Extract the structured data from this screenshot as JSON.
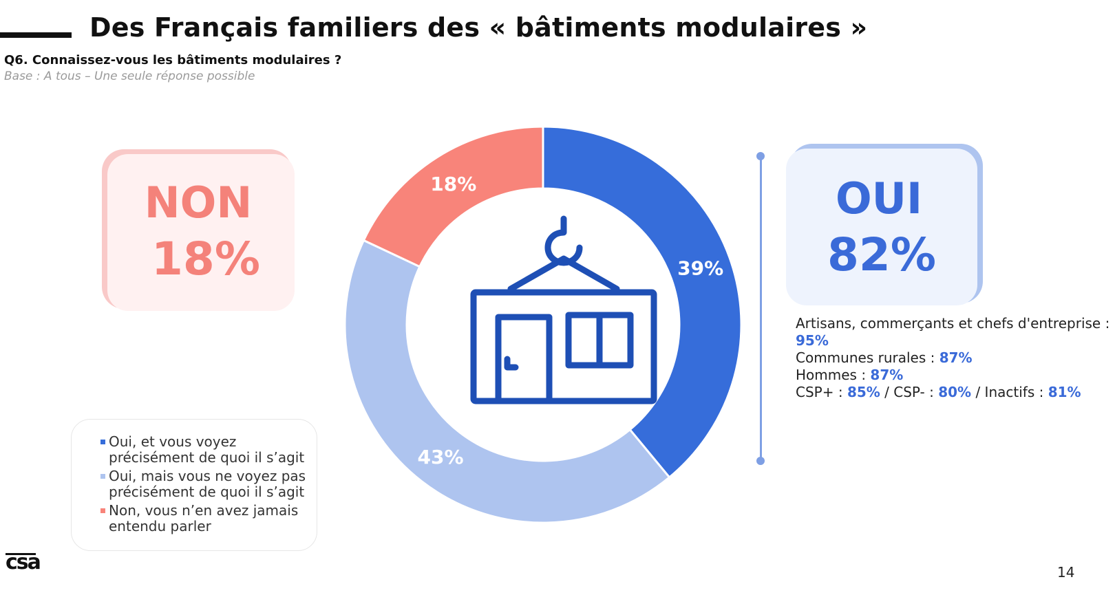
{
  "header": {
    "title": "Des Français familiers des « bâtiments modulaires »",
    "question": "Q6. Connaissez-vous les bâtiments modulaires ?",
    "base": "Base : A tous – Une seule réponse possible"
  },
  "non_box": {
    "label": "NON",
    "value": "18%"
  },
  "oui_box": {
    "label": "OUI",
    "value": "82%"
  },
  "stats": [
    {
      "label": "Artisans, commerçants et chefs d'entreprise : ",
      "value": "95%"
    },
    {
      "label": "Communes rurales : ",
      "value": "87%"
    },
    {
      "label": "Hommes : ",
      "value": "87%"
    },
    {
      "label": "CSP+ : ",
      "value": "85%",
      "label2": " / CSP- : ",
      "value2": "80%",
      "label3": " / Inactifs : ",
      "value3": "81%"
    }
  ],
  "chart_data": {
    "type": "pie",
    "donut": true,
    "categories": [
      "Oui, et vous voyez précisément de quoi il s’agit",
      "Oui, mais vous ne voyez pas précisément de quoi il s’agit",
      "Non, vous n’en avez jamais entendu parler"
    ],
    "values": [
      39,
      43,
      18
    ],
    "data_labels": [
      "39%",
      "43%",
      "18%"
    ],
    "colors": [
      "#366dda",
      "#aec4ef",
      "#f8847a"
    ],
    "legend_placement": "bottom-left",
    "center_icon": "modular-building-icon"
  },
  "footer": {
    "logo": "csa",
    "page": "14"
  }
}
